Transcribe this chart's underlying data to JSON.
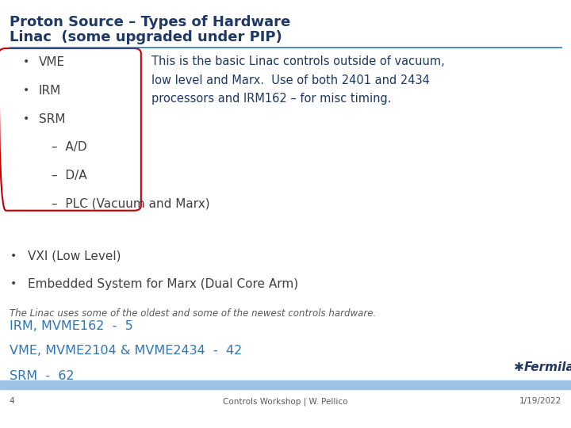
{
  "title_line1": "Proton Source – Types of Hardware",
  "title_line2": "Linac  (some upgraded under PIP)",
  "title_color": "#1f3864",
  "bg_color": "#ffffff",
  "header_rule_color": "#2e75b6",
  "footer_rule_color": "#2e75b6",
  "footer_accent_color": "#9dc3e6",
  "footer_left_num": "4",
  "footer_center": "Controls Workshop | W. Pellico",
  "footer_right": "1/19/2022",
  "footer_color": "#595959",
  "bullet_color": "#404040",
  "box_border_color": "#c00000",
  "box_bullets": [
    {
      "text": "VME",
      "indent": 0.04,
      "bullet": true
    },
    {
      "text": "IRM",
      "indent": 0.04,
      "bullet": true
    },
    {
      "text": "SRM",
      "indent": 0.04,
      "bullet": true
    },
    {
      "text": "–  A/D",
      "indent": 0.09,
      "bullet": false
    },
    {
      "text": "–  D/A",
      "indent": 0.09,
      "bullet": false
    }
  ],
  "sub_bullet": "–  PLC (Vacuum and Marx)",
  "sub_bullet_indent": 0.09,
  "main_bullets": [
    "VXI (Low Level)",
    "Embedded System for Marx (Dual Core Arm)"
  ],
  "callout_text": "This is the basic Linac controls outside of vacuum,\nlow level and Marx.  Use of both 2401 and 2434\nprocessors and IRM162 – for misc timing.",
  "callout_color": "#1f3864",
  "stats_intro": "The Linac uses some of the oldest and some of the newest controls hardware.",
  "stats_intro_color": "#595959",
  "stats_lines": [
    "IRM, MVME162  -  5",
    "VME, MVME2104 & MVME2434  -  42",
    "SRM  -  62"
  ],
  "stats_color": "#2e75b6",
  "fermilab_text": "Fermilab",
  "fermilab_color": "#1f3864"
}
